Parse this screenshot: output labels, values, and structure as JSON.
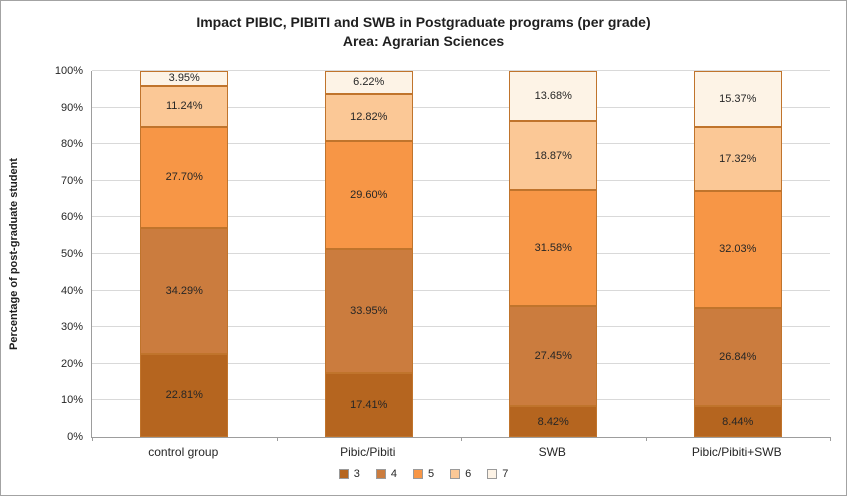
{
  "chart_data": {
    "type": "bar",
    "stacked": true,
    "title": "Impact PIBIC, PIBITI and SWB in Postgraduate programs (per grade)",
    "subtitle": "Area: Agrarian Sciences",
    "ylabel": "Percentage of post-graduate student",
    "xlabel": "",
    "categories": [
      "control group",
      "Pibic/Pibiti",
      "SWB",
      "Pibic/Pibiti+SWB"
    ],
    "series": [
      {
        "name": "3",
        "color": "#b5651f",
        "values": [
          22.81,
          17.41,
          8.42,
          8.44
        ]
      },
      {
        "name": "4",
        "color": "#cb7c3e",
        "values": [
          34.29,
          33.95,
          27.45,
          26.84
        ]
      },
      {
        "name": "5",
        "color": "#f79646",
        "values": [
          27.7,
          29.6,
          31.58,
          32.03
        ]
      },
      {
        "name": "6",
        "color": "#fbc896",
        "values": [
          11.24,
          12.82,
          18.87,
          17.32
        ]
      },
      {
        "name": "7",
        "color": "#fdf3e6",
        "values": [
          3.95,
          6.22,
          13.68,
          15.37
        ]
      }
    ],
    "ylim": [
      0,
      100
    ],
    "yticks": [
      "0%",
      "10%",
      "20%",
      "30%",
      "40%",
      "50%",
      "60%",
      "70%",
      "80%",
      "90%",
      "100%"
    ],
    "grid": true,
    "legend_position": "bottom",
    "value_label_suffix": "%"
  }
}
